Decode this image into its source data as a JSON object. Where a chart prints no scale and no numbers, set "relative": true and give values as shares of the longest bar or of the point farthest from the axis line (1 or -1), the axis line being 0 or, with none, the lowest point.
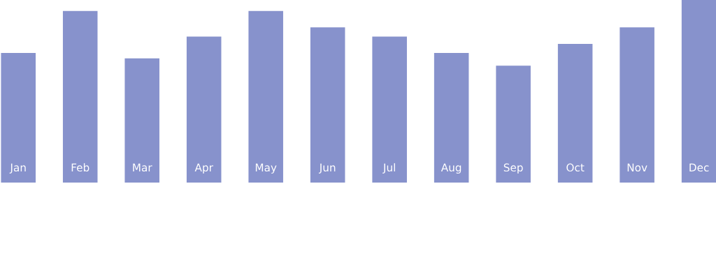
{
  "chart_data": {
    "type": "bar",
    "relative": true,
    "categories": [
      "Jan",
      "Feb",
      "Mar",
      "Apr",
      "May",
      "Jun",
      "Jul",
      "Aug",
      "Sep",
      "Oct",
      "Nov",
      "Dec"
    ],
    "values": [
      0.71,
      0.94,
      0.68,
      0.8,
      0.94,
      0.85,
      0.8,
      0.71,
      0.64,
      0.76,
      0.85,
      1
    ],
    "color": "#8792cc"
  }
}
